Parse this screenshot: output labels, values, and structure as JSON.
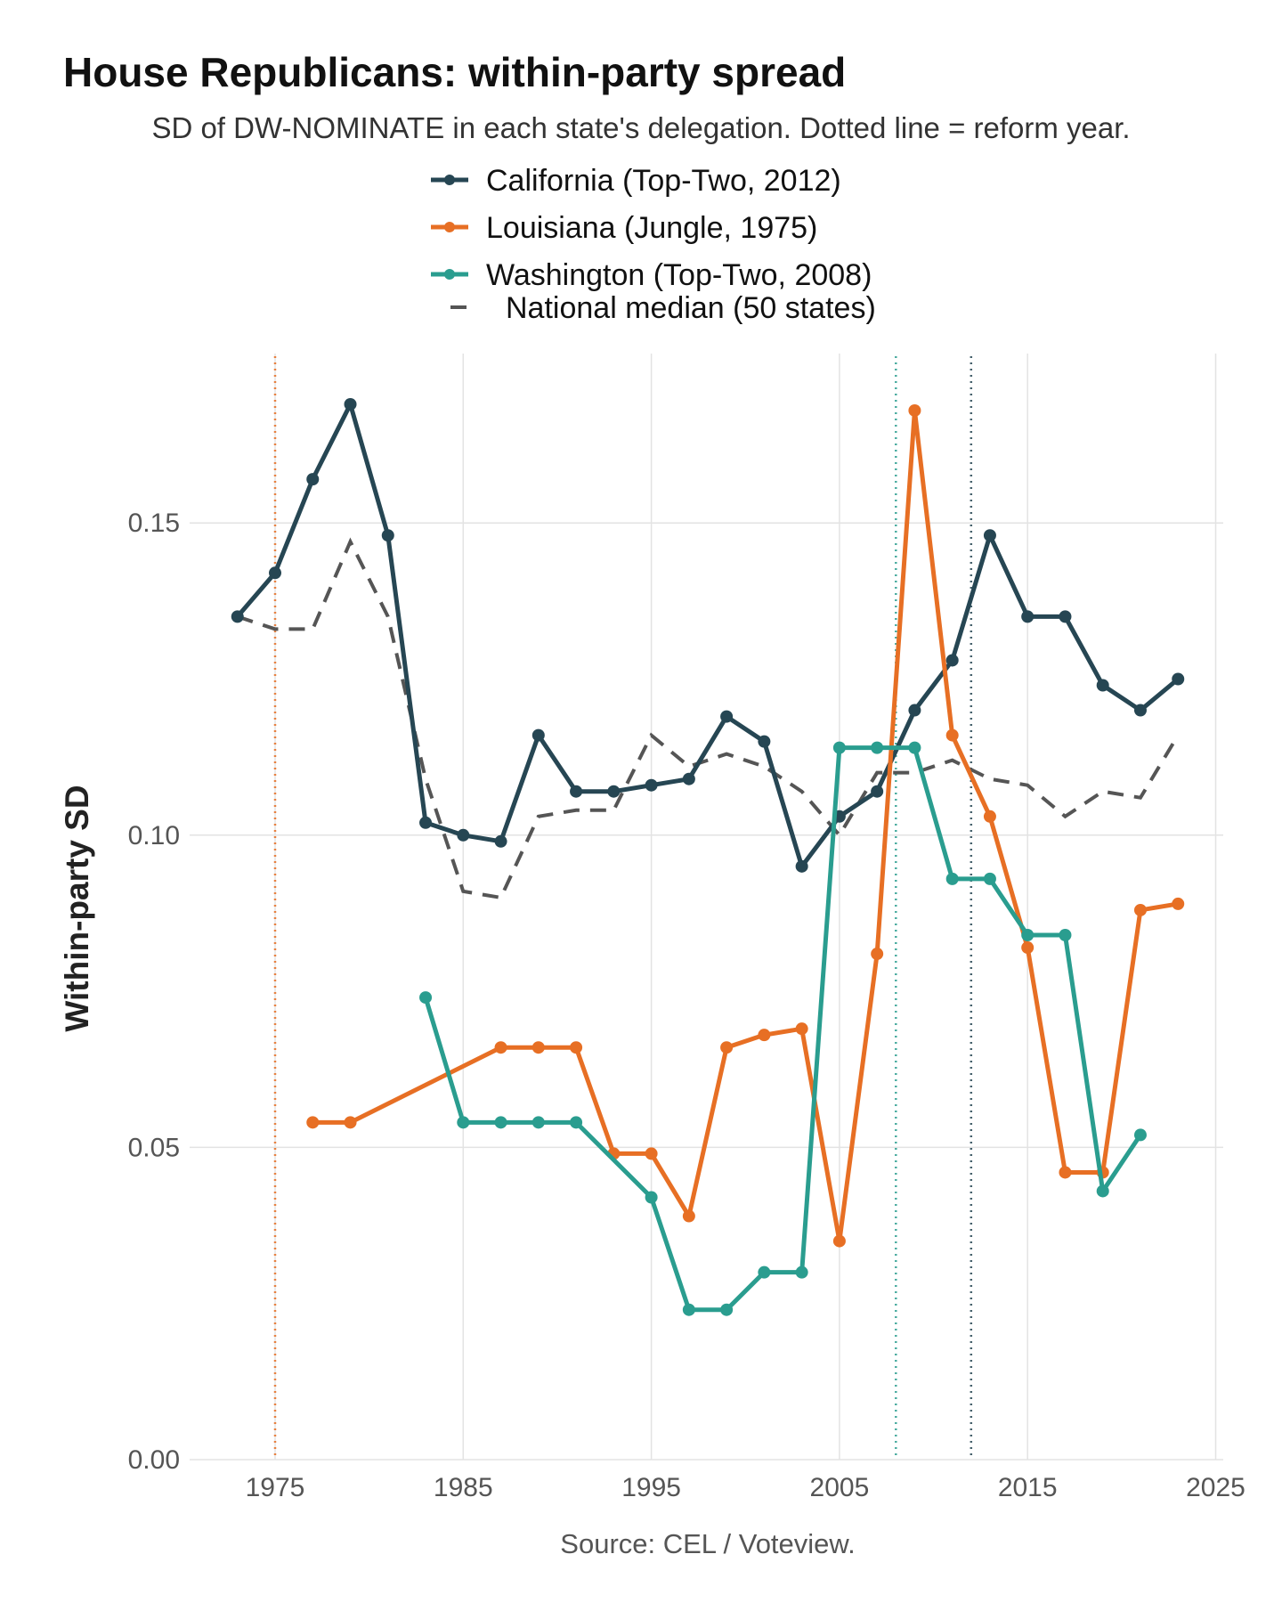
{
  "chart_data": {
    "type": "line",
    "title": "House Republicans: within-party spread",
    "subtitle": "SD of DW-NOMINATE in each state's delegation. Dotted line = reform year.",
    "xlabel": "",
    "ylabel": "Within-party SD",
    "caption": "Source: CEL / Voteview.",
    "xlim": [
      1971,
      2026
    ],
    "ylim": [
      0,
      0.175
    ],
    "x_ticks": [
      1975,
      1985,
      1995,
      2005,
      2015,
      2025
    ],
    "x_tick_labels": [
      "1975",
      "1985",
      "1995",
      "2005",
      "2015",
      "2025"
    ],
    "y_ticks": [
      0,
      0.05,
      0.1,
      0.15
    ],
    "y_tick_labels": [
      "0.00",
      "0.05",
      "0.10",
      "0.15"
    ],
    "grid": true,
    "legend_position": "top",
    "series": [
      {
        "name": "California (Top-Two, 2012)",
        "color": "#264653",
        "style": "solid-markers",
        "reform_year": 2012,
        "x": [
          1973,
          1975,
          1977,
          1979,
          1981,
          1983,
          1985,
          1987,
          1989,
          1991,
          1993,
          1995,
          1997,
          1999,
          2001,
          2003,
          2005,
          2007,
          2009,
          2011,
          2013,
          2015,
          2017,
          2019,
          2021,
          2023
        ],
        "y": [
          0.135,
          0.142,
          0.157,
          0.169,
          0.148,
          0.102,
          0.1,
          0.099,
          0.116,
          0.107,
          0.107,
          0.108,
          0.109,
          0.119,
          0.115,
          0.095,
          0.103,
          0.107,
          0.12,
          0.128,
          0.148,
          0.135,
          0.135,
          0.124,
          0.12,
          0.125
        ]
      },
      {
        "name": "Louisiana (Jungle, 1975)",
        "color": "#e76f24",
        "style": "solid-markers",
        "reform_year": 1975,
        "x": [
          1977,
          1979,
          1987,
          1989,
          1991,
          1993,
          1995,
          1997,
          1999,
          2001,
          2003,
          2005,
          2007,
          2009,
          2011,
          2013,
          2015,
          2017,
          2019,
          2021,
          2023
        ],
        "y": [
          0.054,
          0.054,
          0.066,
          0.066,
          0.066,
          0.049,
          0.049,
          0.039,
          0.066,
          0.068,
          0.069,
          0.035,
          0.081,
          0.168,
          0.116,
          0.103,
          0.082,
          0.046,
          0.046,
          0.088,
          0.089
        ]
      },
      {
        "name": "Washington (Top-Two, 2008)",
        "color": "#2a9d8f",
        "style": "solid-markers",
        "reform_year": 2008,
        "x": [
          1983,
          1985,
          1987,
          1989,
          1991,
          1995,
          1997,
          1999,
          2001,
          2003,
          2005,
          2007,
          2009,
          2011,
          2013,
          2015,
          2017,
          2019,
          2021
        ],
        "y": [
          0.074,
          0.054,
          0.054,
          0.054,
          0.054,
          0.042,
          0.024,
          0.024,
          0.03,
          0.03,
          0.114,
          0.114,
          0.114,
          0.093,
          0.093,
          0.084,
          0.084,
          0.043,
          0.052
        ]
      },
      {
        "name": "National median (50 states)",
        "color": "#555555",
        "style": "dashed",
        "x": [
          1973,
          1975,
          1977,
          1979,
          1981,
          1983,
          1985,
          1987,
          1989,
          1991,
          1993,
          1995,
          1997,
          1999,
          2001,
          2003,
          2005,
          2007,
          2009,
          2011,
          2013,
          2015,
          2017,
          2019,
          2021,
          2023
        ],
        "y": [
          0.135,
          0.133,
          0.133,
          0.147,
          0.135,
          0.109,
          0.091,
          0.09,
          0.103,
          0.104,
          0.104,
          0.116,
          0.111,
          0.113,
          0.111,
          0.107,
          0.1,
          0.11,
          0.11,
          0.112,
          0.109,
          0.108,
          0.103,
          0.107,
          0.106,
          0.116
        ]
      }
    ]
  }
}
